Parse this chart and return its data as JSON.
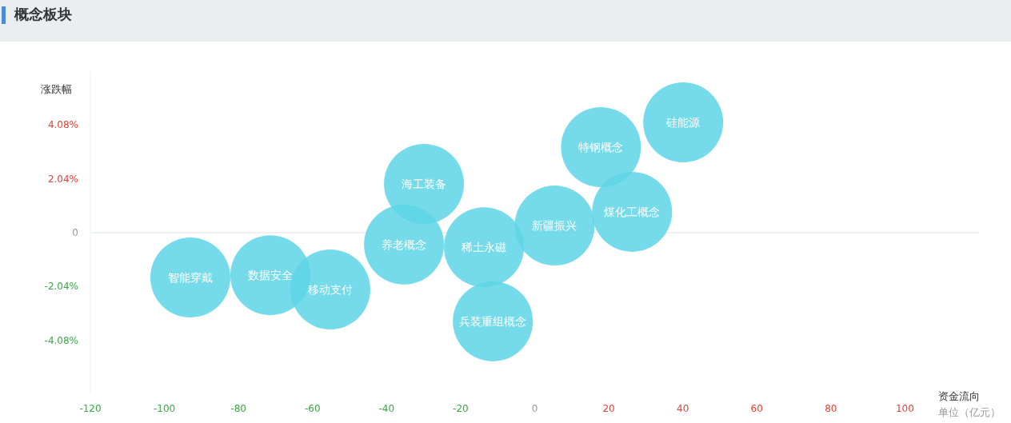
{
  "chart_data": {
    "type": "bubble",
    "title": "概念板块",
    "xlabel": "资金流向",
    "ylabel": "涨跌幅",
    "annotations": [
      "单位（亿元）"
    ],
    "xlim": [
      -120,
      120
    ],
    "xticks": [
      -120,
      -100,
      -80,
      -60,
      -40,
      -20,
      0,
      20,
      40,
      60,
      80,
      100
    ],
    "ylim": [
      -6.12,
      6.12
    ],
    "yticks": [
      {
        "value": 4.08,
        "label": "4.08%"
      },
      {
        "value": 2.04,
        "label": "2.04%"
      },
      0,
      {
        "value": -2.04,
        "label": "-2.04%"
      },
      {
        "value": -4.08,
        "label": "-4.08%"
      }
    ],
    "ref_lines": [
      {
        "axis": "y",
        "value": 0,
        "color": "#eef0f2"
      }
    ],
    "legend": false,
    "grid": false,
    "series": [
      {
        "name": "智能穿戴",
        "color": "#5dd5e6",
        "x": [
          -93.0
        ],
        "values": [
          -1.7
        ],
        "sizes": [
          1
        ]
      },
      {
        "name": "数据安全",
        "color": "#5dd5e6",
        "x": [
          -71.4
        ],
        "values": [
          -1.61
        ],
        "sizes": [
          1
        ]
      },
      {
        "name": "移动支付",
        "color": "#5dd5e6",
        "x": [
          -55.2
        ],
        "values": [
          -2.15
        ],
        "sizes": [
          1
        ]
      },
      {
        "name": "养老概念",
        "color": "#5dd5e6",
        "x": [
          -35.3
        ],
        "values": [
          -0.45
        ],
        "sizes": [
          1
        ]
      },
      {
        "name": "海工装备",
        "color": "#5dd5e6",
        "x": [
          -29.9
        ],
        "values": [
          1.85
        ],
        "sizes": [
          1
        ]
      },
      {
        "name": "稀土永磁",
        "color": "#5dd5e6",
        "x": [
          -13.7
        ],
        "values": [
          -0.55
        ],
        "sizes": [
          1
        ]
      },
      {
        "name": "兵装重组概念",
        "color": "#5dd5e6",
        "x": [
          -11.3
        ],
        "values": [
          -3.36
        ],
        "sizes": [
          1
        ]
      },
      {
        "name": "新疆振兴",
        "color": "#5dd5e6",
        "x": [
          5.4
        ],
        "values": [
          0.27
        ],
        "sizes": [
          1
        ]
      },
      {
        "name": "煤化工概念",
        "color": "#5dd5e6",
        "x": [
          26.3
        ],
        "values": [
          0.79
        ],
        "sizes": [
          1
        ]
      },
      {
        "name": "特钢概念",
        "color": "#5dd5e6",
        "x": [
          17.9
        ],
        "values": [
          3.24
        ],
        "sizes": [
          1
        ]
      },
      {
        "name": "硅能源",
        "color": "#5dd5e6",
        "x": [
          40.1
        ],
        "values": [
          4.18
        ],
        "sizes": [
          1
        ]
      }
    ]
  }
}
